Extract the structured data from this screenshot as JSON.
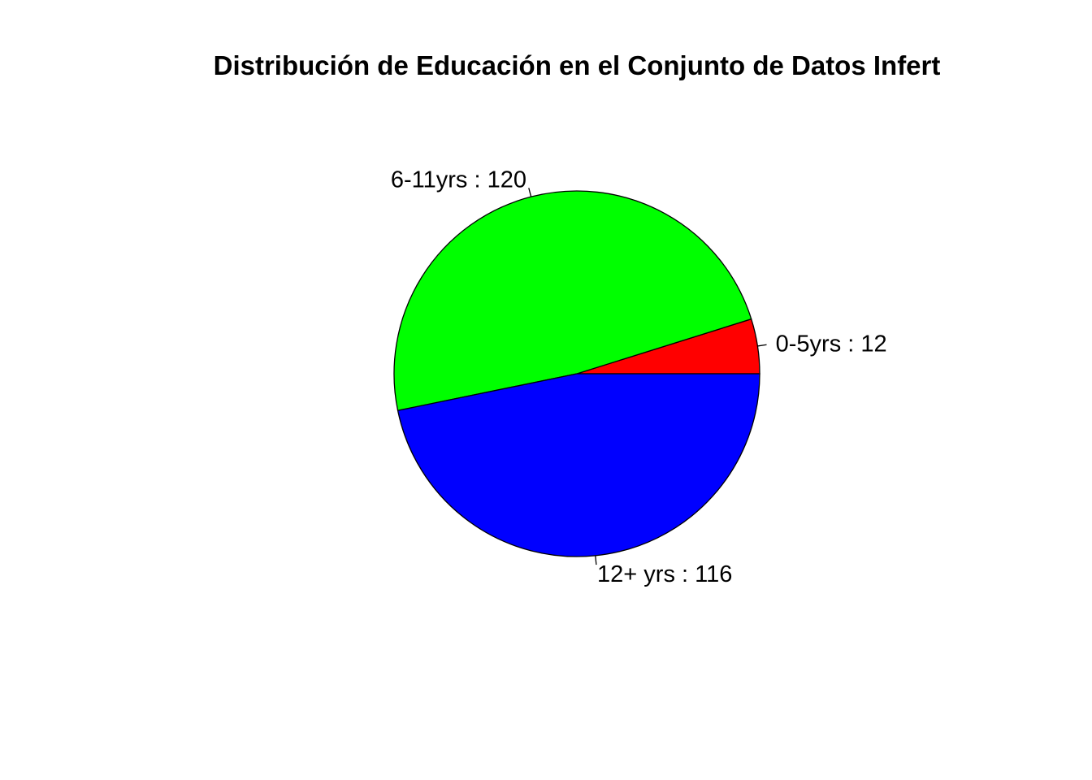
{
  "chart_data": {
    "type": "pie",
    "title": "Distribución de Educación en el Conjunto de Datos Infert",
    "slices": [
      {
        "category": "0-5yrs",
        "value": 12,
        "label": "0-5yrs : 12",
        "color": "#FF0000"
      },
      {
        "category": "6-11yrs",
        "value": 120,
        "label": "6-11yrs : 120",
        "color": "#00FF00"
      },
      {
        "category": "12+ yrs",
        "value": 116,
        "label": "12+ yrs : 116",
        "color": "#0000FF"
      }
    ],
    "start_angle_deg": 0,
    "direction": "counterclockwise",
    "legend": "none"
  }
}
